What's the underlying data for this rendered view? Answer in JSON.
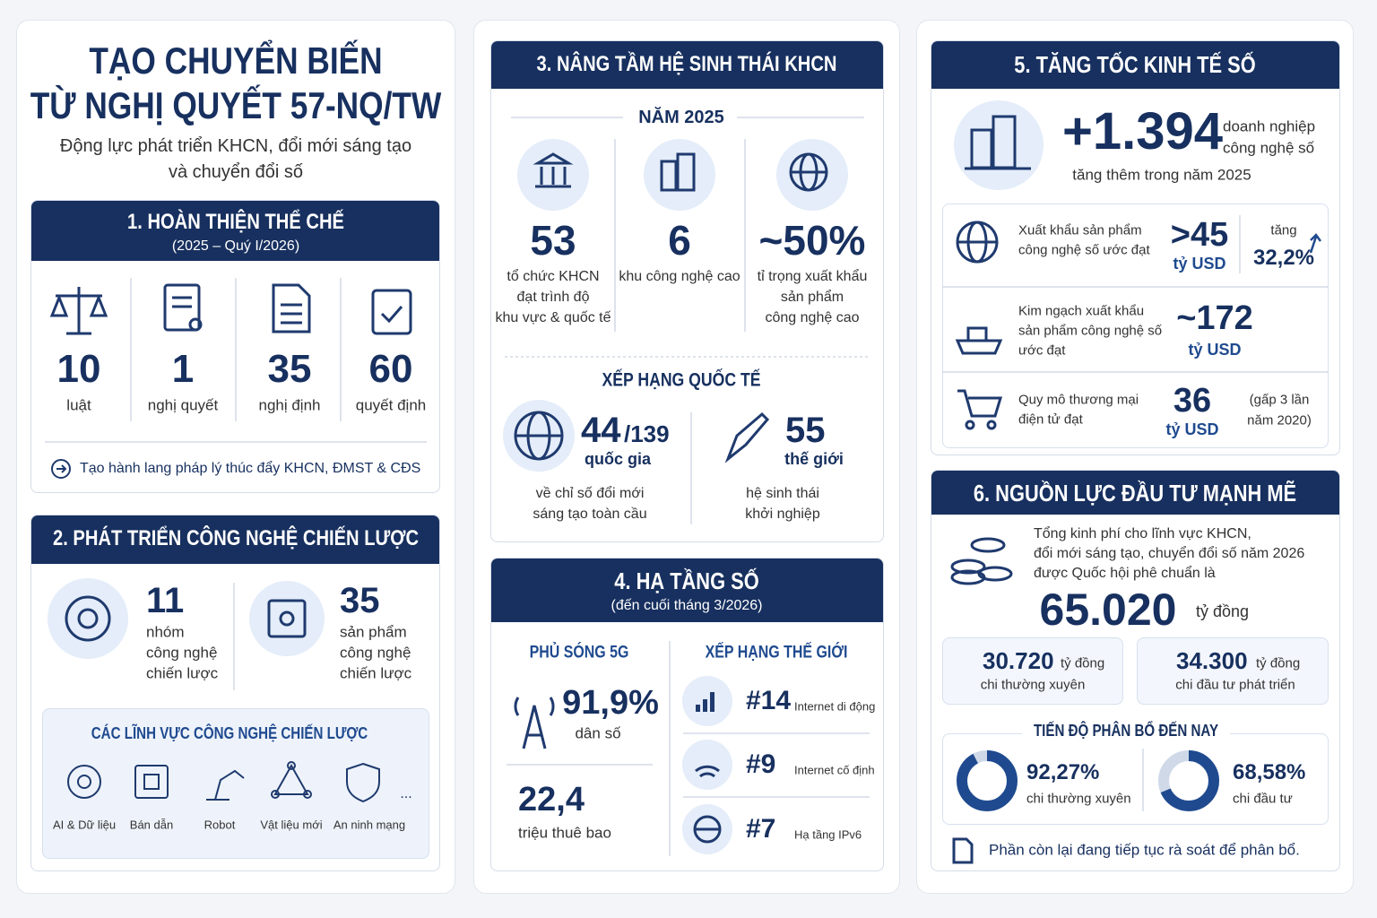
{
  "header": {
    "title_line1": "TẠO CHUYỂN BIẾN",
    "title_line2": "TỪ NGHỊ QUYẾT 57-NQ/TW",
    "subtitle_line1": "Động lực phát triển KHCN, đổi mới sáng tạo",
    "subtitle_line2": "và chuyển đổi số"
  },
  "s1": {
    "title": "1. HOÀN THIỆN THỂ CHẾ",
    "period": "(2025 – Quý I/2026)",
    "items": [
      {
        "value": "10",
        "label": "luật"
      },
      {
        "value": "1",
        "label": "nghị quyết"
      },
      {
        "value": "35",
        "label": "nghị định"
      },
      {
        "value": "60",
        "label": "quyết định"
      }
    ],
    "note": "Tạo hành lang pháp lý thúc đẩy KHCN, ĐMST & CĐS"
  },
  "s2": {
    "title": "2. PHÁT TRIỂN CÔNG NGHỆ CHIẾN LƯỢC",
    "items": [
      {
        "value": "11",
        "label_lines": [
          "nhóm",
          "công nghệ",
          "chiến lược"
        ]
      },
      {
        "value": "35",
        "label_lines": [
          "sản phẩm",
          "công nghệ",
          "chiến lược"
        ]
      }
    ],
    "fields_title": "CÁC LĨNH VỰC CÔNG NGHỆ CHIẾN LƯỢC",
    "fields": [
      "AI & Dữ liệu",
      "Bán dẫn",
      "Robot",
      "Vật liệu mới",
      "An ninh mạng"
    ],
    "more": "..."
  },
  "s3": {
    "title": "3. NÂNG TẦM HỆ SINH THÁI KHCN",
    "year": "NĂM 2025",
    "items": [
      {
        "value": "53",
        "label_lines": [
          "tổ chức KHCN",
          "đạt trình độ",
          "khu vực & quốc tế"
        ]
      },
      {
        "value": "6",
        "label_lines": [
          "khu công nghệ cao"
        ]
      },
      {
        "value": "~50%",
        "label_lines": [
          "tỉ trọng xuất khẩu",
          "sản phẩm",
          "công nghệ cao"
        ]
      }
    ],
    "ranking_title": "XẾP HẠNG QUỐC TẾ",
    "rankings": [
      {
        "value": "44",
        "total": "/139",
        "unit": "quốc gia",
        "label_lines": [
          "về chỉ số đổi mới",
          "sáng tạo toàn cầu"
        ]
      },
      {
        "value": "55",
        "unit": "thế giới",
        "label_lines": [
          "hệ sinh thái",
          "khởi nghiệp"
        ]
      }
    ]
  },
  "s4": {
    "title": "4. HẠ TẦNG SỐ",
    "period": "(đến cuối tháng 3/2026)",
    "coverage_title": "PHỦ SÓNG 5G",
    "coverage_value": "91,9%",
    "coverage_unit": "dân số",
    "subscribers": "22,4",
    "subscribers_unit": "triệu thuê bao",
    "ranking_title": "XẾP HẠNG THẾ GIỚI",
    "rankings": [
      {
        "rank": "#14",
        "label": "Internet di động"
      },
      {
        "rank": "#9",
        "label": "Internet cố định"
      },
      {
        "rank": "#7",
        "label": "Hạ tầng IPv6"
      }
    ]
  },
  "s5": {
    "title": "5. TĂNG TỐC KINH TẾ SỐ",
    "headline_value": "+1.394",
    "headline_unit_lines": [
      "doanh nghiệp",
      "công nghệ số"
    ],
    "headline_note": "tăng thêm trong năm 2025",
    "rows": [
      {
        "label_lines": [
          "Xuất khẩu sản phẩm",
          "công nghệ số ước đạt"
        ],
        "value": ">45",
        "unit": "tỷ USD",
        "extra_lines": [
          "tăng",
          "32,2%"
        ]
      },
      {
        "label_lines": [
          "Kim ngạch xuất khẩu",
          "sản phẩm công nghệ số",
          "ước đạt"
        ],
        "value": "~172",
        "unit": "tỷ USD"
      },
      {
        "label_lines": [
          "Quy mô thương mại",
          "điện tử đạt"
        ],
        "value": "36",
        "unit": "tỷ USD",
        "extra_lines": [
          "(gấp 3 lần",
          "năm 2020)"
        ]
      }
    ]
  },
  "s6": {
    "title": "6. NGUỒN LỰC ĐẦU TƯ MẠNH MẼ",
    "intro_lines": [
      "Tổng kinh phí cho lĩnh vực KHCN,",
      "đổi mới sáng tạo, chuyển đổi số năm 2026",
      "được Quốc hội phê chuẩn là"
    ],
    "total": "65.020",
    "total_unit": "tỷ đồng",
    "parts": [
      {
        "value": "30.720",
        "unit": "tỷ đồng",
        "label": "chi thường xuyên"
      },
      {
        "value": "34.300",
        "unit": "tỷ đồng",
        "label": "chi đầu tư phát triển"
      }
    ],
    "progress_title": "TIẾN ĐỘ PHÂN BỔ ĐẾN NAY",
    "progress": [
      {
        "value": 92.27,
        "label": "92,27%",
        "caption": "chi thường xuyên"
      },
      {
        "value": 68.58,
        "label": "68,58%",
        "caption": "chi đầu tư"
      }
    ],
    "note": "Phần còn lại đang tiếp tục rà soát để phân bổ."
  }
}
